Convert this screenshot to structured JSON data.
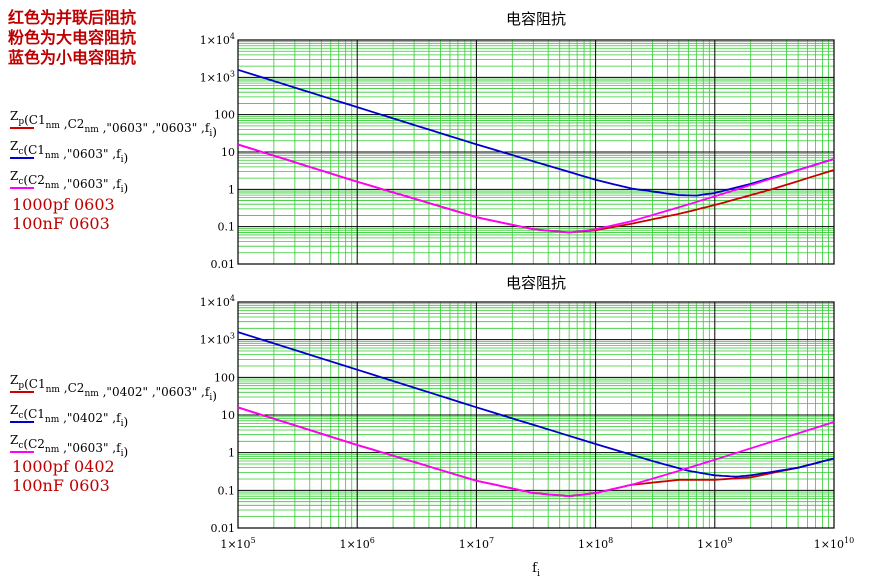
{
  "note": {
    "lines": [
      "红色为并联后阻抗",
      "粉色为大电容阻抗",
      "蓝色为小电容阻抗"
    ]
  },
  "xlabel": "f",
  "xlabel_sub": "i",
  "chart_data": [
    {
      "type": "line",
      "title": "电容阻抗",
      "xscale": "log",
      "yscale": "log",
      "xlim": [
        100000,
        10000000000
      ],
      "ylim": [
        0.01,
        10000
      ],
      "grid": true,
      "x_ticks": [
        "1×10^5",
        "1×10^6",
        "1×10^7",
        "1×10^8",
        "1×10^9",
        "1×10^10"
      ],
      "y_ticks": [
        "0.01",
        "0.1",
        "1",
        "10",
        "100",
        "1×10^3",
        "1×10^4"
      ],
      "legend": [
        {
          "label": "Zp(C1nm,C2nm,\"0603\",\"0603\",fi)",
          "color": "#cc0000"
        },
        {
          "label": "Zc(C1nm,\"0603\",fi)",
          "color": "#0000cc"
        },
        {
          "label": "Zc(C2nm,\"0603\",fi)",
          "color": "#ff00ff"
        }
      ],
      "annotation": [
        "1000pf  0603",
        "100nF  0603"
      ],
      "series": [
        {
          "name": "Zp(C1nm,C2nm,\"0603\",\"0603\",fi)",
          "color": "#cc0000",
          "x": [
            100000.0,
            1000000.0,
            10000000.0,
            30000000.0,
            60000000.0,
            100000000.0,
            200000000.0,
            500000000.0,
            1000000000.0,
            3000000000.0,
            10000000000.0
          ],
          "y": [
            15.9,
            1.6,
            0.18,
            0.085,
            0.07,
            0.08,
            0.12,
            0.22,
            0.38,
            1.0,
            3.3
          ]
        },
        {
          "name": "Zc(C1nm,\"0603\",fi)",
          "color": "#0000cc",
          "x": [
            100000.0,
            1000000.0,
            10000000.0,
            100000000.0,
            200000000.0,
            500000000.0,
            700000000.0,
            1000000000.0,
            2000000000.0,
            5000000000.0,
            10000000000.0
          ],
          "y": [
            1590,
            159,
            16,
            1.8,
            1.05,
            0.7,
            0.68,
            0.8,
            1.4,
            3.3,
            6.5
          ]
        },
        {
          "name": "Zc(C2nm,\"0603\",fi)",
          "color": "#ff00ff",
          "x": [
            100000.0,
            1000000.0,
            10000000.0,
            30000000.0,
            60000000.0,
            100000000.0,
            200000000.0,
            500000000.0,
            1000000000.0,
            3000000000.0,
            10000000000.0
          ],
          "y": [
            15.9,
            1.6,
            0.18,
            0.085,
            0.07,
            0.085,
            0.14,
            0.33,
            0.65,
            1.95,
            6.5
          ]
        }
      ]
    },
    {
      "type": "line",
      "title": "电容阻抗",
      "xscale": "log",
      "yscale": "log",
      "xlim": [
        100000,
        10000000000
      ],
      "ylim": [
        0.01,
        10000
      ],
      "grid": true,
      "x_ticks": [
        "1×10^5",
        "1×10^6",
        "1×10^7",
        "1×10^8",
        "1×10^9",
        "1×10^10"
      ],
      "y_ticks": [
        "0.01",
        "0.1",
        "1",
        "10",
        "100",
        "1×10^3",
        "1×10^4"
      ],
      "legend": [
        {
          "label": "Zp(C1nm,C2nm,\"0402\",\"0603\",fi)",
          "color": "#cc0000"
        },
        {
          "label": "Zc(C1nm,\"0402\",fi)",
          "color": "#0000cc"
        },
        {
          "label": "Zc(C2nm,\"0603\",fi)",
          "color": "#ff00ff"
        }
      ],
      "annotation": [
        "1000pf  0402",
        "100nF  0603"
      ],
      "series": [
        {
          "name": "Zp(C1nm,C2nm,\"0402\",\"0603\",fi)",
          "color": "#cc0000",
          "x": [
            100000.0,
            1000000.0,
            10000000.0,
            30000000.0,
            60000000.0,
            100000000.0,
            200000000.0,
            500000000.0,
            1000000000.0,
            2000000000.0,
            5000000000.0,
            10000000000.0
          ],
          "y": [
            15.9,
            1.6,
            0.18,
            0.085,
            0.07,
            0.085,
            0.14,
            0.19,
            0.19,
            0.22,
            0.4,
            0.7
          ]
        },
        {
          "name": "Zc(C1nm,\"0402\",fi)",
          "color": "#0000cc",
          "x": [
            100000.0,
            1000000.0,
            10000000.0,
            100000000.0,
            300000000.0,
            600000000.0,
            1000000000.0,
            1500000000.0,
            2000000000.0,
            5000000000.0,
            10000000000.0
          ],
          "y": [
            1590,
            159,
            16,
            1.7,
            0.6,
            0.33,
            0.25,
            0.23,
            0.25,
            0.4,
            0.7
          ]
        },
        {
          "name": "Zc(C2nm,\"0603\",fi)",
          "color": "#ff00ff",
          "x": [
            100000.0,
            1000000.0,
            10000000.0,
            30000000.0,
            60000000.0,
            100000000.0,
            200000000.0,
            500000000.0,
            1000000000.0,
            3000000000.0,
            10000000000.0
          ],
          "y": [
            15.9,
            1.6,
            0.18,
            0.085,
            0.07,
            0.085,
            0.14,
            0.33,
            0.65,
            1.95,
            6.5
          ]
        }
      ]
    }
  ]
}
